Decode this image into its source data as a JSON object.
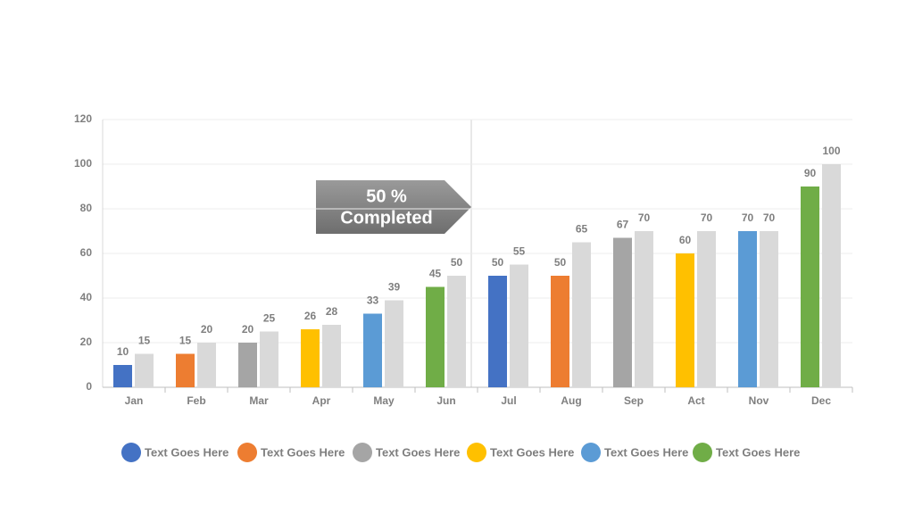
{
  "chart_data": {
    "type": "bar",
    "categories": [
      "Jan",
      "Feb",
      "Mar",
      "Apr",
      "May",
      "Jun",
      "Jul",
      "Aug",
      "Sep",
      "Act",
      "Nov",
      "Dec"
    ],
    "series": [
      {
        "colors": [
          "#4472c4",
          "#ed7d31",
          "#a5a5a5",
          "#ffc000",
          "#5b9bd5",
          "#70ad47",
          "#4472c4",
          "#ed7d31",
          "#a5a5a5",
          "#ffc000",
          "#5b9bd5",
          "#70ad47"
        ],
        "values": [
          10,
          15,
          20,
          26,
          33,
          45,
          50,
          50,
          67,
          60,
          70,
          90
        ]
      },
      {
        "color": "#d9d9d9",
        "values": [
          15,
          20,
          25,
          28,
          39,
          50,
          55,
          65,
          70,
          70,
          70,
          100
        ]
      }
    ],
    "ylim": [
      0,
      120
    ],
    "yticks": [
      0,
      20,
      40,
      60,
      80,
      100,
      120
    ],
    "grid": true,
    "annotation": [
      "50 %",
      "Completed"
    ],
    "legend": [
      {
        "name": "Text Goes Here",
        "color": "#4472c4"
      },
      {
        "name": "Text Goes Here",
        "color": "#ed7d31"
      },
      {
        "name": "Text Goes Here",
        "color": "#a5a5a5"
      },
      {
        "name": "Text Goes Here",
        "color": "#ffc000"
      },
      {
        "name": "Text Goes Here",
        "color": "#5b9bd5"
      },
      {
        "name": "Text Goes Here",
        "color": "#70ad47"
      }
    ]
  }
}
